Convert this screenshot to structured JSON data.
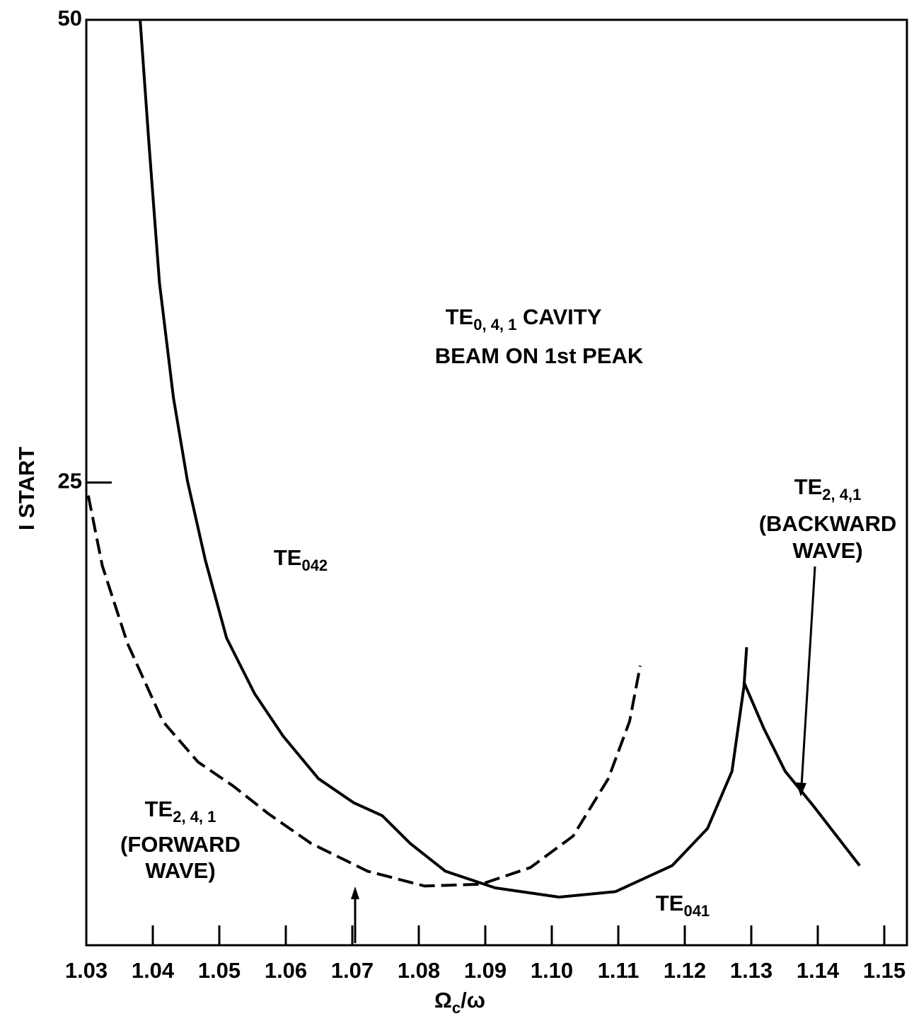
{
  "chart_data": {
    "type": "line",
    "ylabel": "I START",
    "xlabel": {
      "text": "Ω",
      "sub": "c",
      "suffix": "/ω"
    },
    "xlim": [
      1.03,
      1.15
    ],
    "xticks": [
      1.03,
      1.04,
      1.05,
      1.06,
      1.07,
      1.08,
      1.09,
      {
        "value": 1.1,
        "label": "1.10"
      },
      1.11,
      1.12,
      1.13,
      1.14,
      1.15
    ],
    "ylim": [
      0,
      50
    ],
    "yticks": [
      25,
      50
    ],
    "annotations": [
      {
        "text": "TE",
        "sub": "0, 4, 1",
        "suffix": " CAVITY"
      },
      {
        "text": "BEAM ON 1st PEAK"
      },
      {
        "text": "TE",
        "sub": "042"
      },
      {
        "text": "TE",
        "sub": "2, 4, 1"
      },
      {
        "text": "(FORWARD"
      },
      {
        "text": "WAVE)"
      },
      {
        "text": "TE",
        "sub": "041"
      },
      {
        "text": "TE",
        "sub": "2, 4,1"
      },
      {
        "text": "(BACKWARD"
      },
      {
        "text": "WAVE)"
      }
    ],
    "series": [
      {
        "color": "#000000",
        "dashed": false,
        "x": [
          1.0381,
          1.0394,
          1.041,
          1.0431,
          1.0452,
          1.0479,
          1.0511,
          1.0553,
          1.0596,
          1.0649,
          1.0702,
          1.0745,
          1.0787,
          1.084,
          1.0915,
          1.1011,
          1.1096,
          1.1181,
          1.1234,
          1.1271,
          1.1289,
          1.1293
        ],
        "values": [
          50,
          43.4,
          35.8,
          29.6,
          25.1,
          20.8,
          16.6,
          13.6,
          11.3,
          9.0,
          7.7,
          7.0,
          5.5,
          4.0,
          3.1,
          2.6,
          2.9,
          4.3,
          6.3,
          9.4,
          14.0,
          16.1
        ]
      },
      {
        "color": "#000000",
        "dashed": false,
        "x": [
          1.1289,
          1.1319,
          1.1351,
          1.1394,
          1.1463
        ],
        "values": [
          14.2,
          11.7,
          9.4,
          7.5,
          4.3
        ]
      },
      {
        "color": "#000000",
        "dashed": true,
        "x": [
          1.0303,
          1.0324,
          1.0362,
          1.0415,
          1.0468,
          1.0521,
          1.0574,
          1.0638,
          1.0723,
          1.0809,
          1.0894,
          1.0968,
          1.1032,
          1.1085,
          1.1117,
          1.1133
        ],
        "values": [
          24.3,
          20.5,
          16.3,
          12.1,
          9.9,
          8.6,
          7.1,
          5.5,
          4.0,
          3.2,
          3.3,
          4.2,
          5.9,
          9.0,
          12.1,
          15.1
        ]
      }
    ]
  }
}
